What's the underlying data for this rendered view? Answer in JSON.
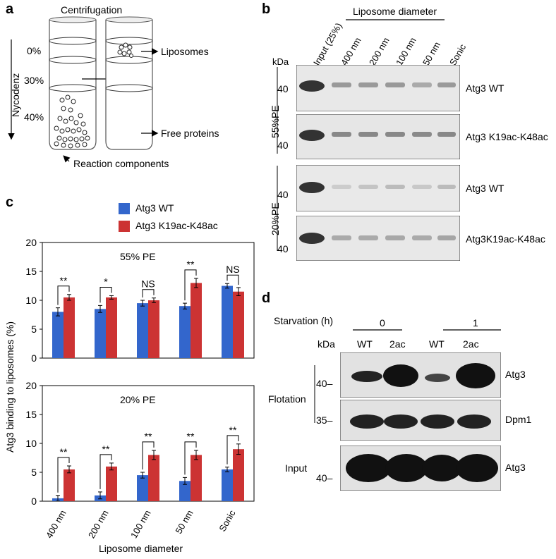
{
  "panel_a": {
    "letter": "a",
    "title": "Centrifugation",
    "gradient_label": "Nycodenz",
    "levels": [
      "0%",
      "30%",
      "40%"
    ],
    "liposomes_label": "Liposomes",
    "free_proteins_label": "Free proteins",
    "reaction_label": "Reaction components"
  },
  "panel_b": {
    "letter": "b",
    "header": "Liposome diameter",
    "lanes": [
      "Input (25%)",
      "400 nm",
      "200 nm",
      "100 nm",
      "50 nm",
      "Sonic"
    ],
    "kda": "kDa",
    "marker": "40",
    "groups": [
      "55%PE",
      "20%PE"
    ],
    "blots": [
      {
        "label": "Atg3 WT"
      },
      {
        "label": "Atg3 K19ac-K48ac"
      },
      {
        "label": "Atg3 WT"
      },
      {
        "label": "Atg3K19ac-K48ac"
      }
    ]
  },
  "panel_c": {
    "letter": "c",
    "legend": [
      "Atg3 WT",
      "Atg3 K19ac-K48ac"
    ],
    "ylabel": "Atg3 binding to liposomes (%)",
    "xlabel": "Liposome diameter",
    "ticks": [
      "0",
      "5",
      "10",
      "15",
      "20"
    ]
  },
  "chart_data": [
    {
      "type": "bar",
      "title": "55% PE",
      "categories": [
        "400 nm",
        "200 nm",
        "100 nm",
        "50 nm",
        "Sonic"
      ],
      "series": [
        {
          "name": "Atg3 WT",
          "values": [
            8.0,
            8.5,
            9.5,
            9.0,
            12.5
          ],
          "errors": [
            0.7,
            0.6,
            0.5,
            0.5,
            0.4
          ]
        },
        {
          "name": "Atg3 K19ac-K48ac",
          "values": [
            10.5,
            10.5,
            10.0,
            13.0,
            11.5
          ],
          "errors": [
            0.5,
            0.3,
            0.4,
            0.8,
            0.7
          ]
        }
      ],
      "significance": [
        "**",
        "*",
        "NS",
        "**",
        "NS"
      ],
      "ylabel": "Atg3 binding to liposomes (%)",
      "ylim": [
        0,
        20
      ],
      "colors": [
        "#3366cc",
        "#cc3333"
      ]
    },
    {
      "type": "bar",
      "title": "20% PE",
      "categories": [
        "400 nm",
        "200 nm",
        "100 nm",
        "50 nm",
        "Sonic"
      ],
      "series": [
        {
          "name": "Atg3 WT",
          "values": [
            0.5,
            1.0,
            4.5,
            3.5,
            5.5
          ],
          "errors": [
            0.5,
            0.6,
            0.5,
            0.6,
            0.4
          ]
        },
        {
          "name": "Atg3 K19ac-K48ac",
          "values": [
            5.5,
            6.0,
            8.0,
            8.0,
            9.0
          ],
          "errors": [
            0.6,
            0.6,
            0.8,
            0.8,
            0.9
          ]
        }
      ],
      "significance": [
        "**",
        "**",
        "**",
        "**",
        "**"
      ],
      "xlabel": "Liposome diameter",
      "ylim": [
        0,
        20
      ],
      "colors": [
        "#3366cc",
        "#cc3333"
      ]
    }
  ],
  "panel_d": {
    "letter": "d",
    "starvation_label": "Starvation (h)",
    "time_points": [
      "0",
      "1"
    ],
    "kda": "kDa",
    "lanes": [
      "WT",
      "2ac",
      "WT",
      "2ac"
    ],
    "flotation_label": "Flotation",
    "input_label": "Input",
    "markers": [
      "40–",
      "35–",
      "40–"
    ],
    "blot_labels": [
      "Atg3",
      "Dpm1",
      "Atg3"
    ]
  }
}
